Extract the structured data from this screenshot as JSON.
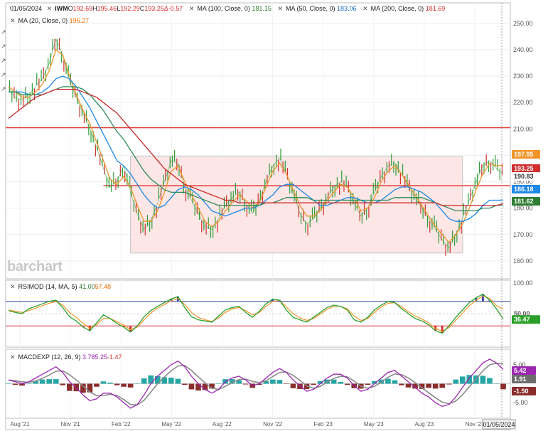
{
  "header": {
    "date": "01/05/2024",
    "symbol": "IWM",
    "open_label": "O",
    "open": "192.69",
    "high_label": "H",
    "high": "195.46",
    "low_label": "L",
    "low": "192.29",
    "close_label": "C",
    "close": "193.25",
    "change_label": "Δ",
    "change": "-0.57",
    "ma100_label": "MA (100, Close, 0)",
    "ma100_value": "181.15",
    "ma50_label": "MA (50, Close, 0)",
    "ma50_value": "183.06",
    "ma200_label": "MA (200, Close, 0)",
    "ma200_value": "181.69",
    "ma20_label": "MA (20, Close, 0)",
    "ma20_value": "196.27"
  },
  "rsi_header": {
    "label": "RSIMOD (14, MA, 5)",
    "v1": "41.00",
    "v2": "57.48"
  },
  "macd_header": {
    "label": "MACDEXP (12, 26, 9)",
    "v1": "3.78",
    "v2": "5.25",
    "v3": "-1.47"
  },
  "watermark": "barchart",
  "colors": {
    "price": "#2e9e3a",
    "ma20": "#f0952a",
    "ma50": "#1e88e5",
    "ma100": "#2e8b57",
    "ma200": "#c62828",
    "hline": "#e53935",
    "range_fill": "#fde4e4",
    "rsi_line": "#2aa02a",
    "rsi_ma": "#f0952a",
    "rsi_high": "#3949ab",
    "rsi_low": "#d32f2f",
    "macd": "#9c27b0",
    "macd_signal": "#8a8a8a",
    "hist_pos": "#26a6a6",
    "hist_neg": "#8b2d2d"
  },
  "chart_data": [
    {
      "type": "line",
      "title": "IWM",
      "x_labels": [
        "Aug '21",
        "Nov '21",
        "Feb '22",
        "May '22",
        "Aug '22",
        "Nov '22",
        "Feb '23",
        "May '23",
        "Aug '23",
        "Nov '23"
      ],
      "current_date": "01/05/2024",
      "y_ticks": [
        160.0,
        170.0,
        180.0,
        190.0,
        200.0,
        210.0,
        220.0,
        230.0,
        240.0,
        250.0
      ],
      "ylim": [
        157,
        254
      ],
      "series": [
        {
          "name": "IWM",
          "values": [
            225,
            222,
            221,
            223,
            226,
            229,
            235,
            244,
            238,
            228,
            222,
            216,
            210,
            203,
            195,
            188,
            190,
            196,
            186,
            178,
            172,
            175,
            182,
            190,
            198,
            197,
            188,
            183,
            178,
            173,
            172,
            176,
            181,
            184,
            186,
            182,
            178,
            183,
            190,
            196,
            199,
            193,
            186,
            178,
            174,
            176,
            180,
            184,
            188,
            190,
            188,
            182,
            177,
            180,
            186,
            192,
            196,
            197,
            193,
            188,
            184,
            180,
            176,
            172,
            168,
            165,
            170,
            176,
            183,
            190,
            196,
            198,
            195,
            193
          ]
        },
        {
          "name": "MA (20, Close, 0)",
          "values": [
            226,
            224,
            222,
            222,
            224,
            227,
            232,
            240,
            238,
            230,
            223,
            217,
            212,
            205,
            198,
            191,
            189,
            192,
            188,
            181,
            175,
            175,
            179,
            186,
            194,
            196,
            190,
            185,
            180,
            175,
            173,
            175,
            179,
            182,
            185,
            183,
            180,
            182,
            188,
            194,
            197,
            193,
            187,
            181,
            177,
            177,
            179,
            183,
            186,
            189,
            188,
            184,
            179,
            180,
            184,
            190,
            194,
            196,
            193,
            189,
            185,
            181,
            177,
            173,
            170,
            167,
            170,
            174,
            180,
            187,
            193,
            197,
            196,
            196.27
          ]
        },
        {
          "name": "MA (50, Close, 0)",
          "values": [
            224,
            224,
            224,
            223,
            223,
            224,
            226,
            229,
            230,
            229,
            226,
            222,
            218,
            213,
            208,
            203,
            198,
            196,
            193,
            189,
            185,
            182,
            180,
            181,
            184,
            187,
            188,
            187,
            185,
            182,
            179,
            178,
            177,
            178,
            179,
            180,
            180,
            181,
            183,
            185,
            188,
            189,
            189,
            187,
            185,
            183,
            181,
            181,
            182,
            183,
            184,
            184,
            183,
            182,
            182,
            183,
            185,
            187,
            188,
            188,
            187,
            186,
            184,
            182,
            179,
            176,
            175,
            175,
            176,
            178,
            181,
            183,
            183,
            183.06
          ]
        },
        {
          "name": "MA (100, Close, 0)",
          "values": [
            224,
            224,
            223,
            223,
            223,
            223,
            224,
            225,
            226,
            226,
            226,
            225,
            223,
            220,
            217,
            213,
            209,
            206,
            202,
            198,
            194,
            191,
            189,
            187,
            186,
            186,
            186,
            185,
            184,
            183,
            182,
            181,
            181,
            181,
            181,
            181,
            181,
            181,
            182,
            182,
            183,
            184,
            184,
            184,
            184,
            183,
            183,
            183,
            183,
            183,
            183,
            183,
            183,
            183,
            183,
            183,
            183,
            184,
            184,
            184,
            184,
            184,
            183,
            182,
            181,
            180,
            179,
            179,
            179,
            179,
            180,
            180,
            181,
            181.15
          ]
        },
        {
          "name": "MA (200, Close, 0)",
          "values": [
            214,
            216,
            218,
            220,
            222,
            223,
            224,
            225,
            225,
            225,
            225,
            224,
            223,
            222,
            220,
            218,
            216,
            213,
            210,
            207,
            204,
            201,
            198,
            195,
            193,
            191,
            189,
            188,
            187,
            186,
            185,
            184,
            183,
            183,
            182,
            182,
            182,
            182,
            182,
            182,
            182,
            182,
            182,
            182,
            182,
            182,
            182,
            182,
            182,
            182,
            182,
            182,
            182,
            182,
            182,
            182,
            182,
            182,
            182,
            182,
            182,
            182,
            182,
            182,
            181,
            181,
            181,
            181,
            181,
            181,
            181,
            181,
            181,
            181.69
          ]
        }
      ],
      "horizontal_lines": [
        210.5,
        188.5
      ],
      "range_box": {
        "y_top": 199.5,
        "y_bottom": 163
      },
      "last_value_tags": [
        "197.95",
        "193.25",
        "190.83",
        "186.18",
        "181.62"
      ]
    },
    {
      "type": "line",
      "title": "RSIMOD (14, MA, 5)",
      "y_ticks": [
        100.0,
        50.0
      ],
      "ylim": [
        0,
        100
      ],
      "levels": [
        70,
        30
      ],
      "series": [
        {
          "name": "RSI",
          "values": [
            55,
            52,
            50,
            58,
            62,
            66,
            70,
            72,
            60,
            45,
            38,
            28,
            22,
            35,
            48,
            42,
            34,
            28,
            20,
            30,
            45,
            55,
            62,
            68,
            74,
            78,
            60,
            45,
            40,
            38,
            36,
            46,
            56,
            60,
            62,
            52,
            44,
            54,
            66,
            74,
            72,
            56,
            44,
            40,
            36,
            44,
            52,
            60,
            64,
            62,
            56,
            40,
            36,
            44,
            56,
            64,
            70,
            68,
            58,
            50,
            42,
            38,
            32,
            22,
            18,
            30,
            44,
            56,
            68,
            76,
            82,
            72,
            58,
            41.0
          ]
        },
        {
          "name": "MA",
          "values": [
            56,
            54,
            52,
            55,
            59,
            63,
            67,
            70,
            64,
            52,
            44,
            34,
            26,
            32,
            42,
            42,
            37,
            31,
            24,
            28,
            40,
            51,
            59,
            65,
            71,
            75,
            65,
            52,
            44,
            40,
            37,
            43,
            52,
            58,
            60,
            55,
            48,
            52,
            62,
            70,
            72,
            61,
            50,
            43,
            39,
            42,
            49,
            57,
            62,
            62,
            58,
            46,
            39,
            42,
            52,
            61,
            67,
            68,
            61,
            53,
            46,
            41,
            35,
            26,
            21,
            27,
            39,
            51,
            63,
            72,
            79,
            75,
            63,
            57.48
          ]
        }
      ],
      "last_value_tags": [
        "50.00",
        "36.47"
      ]
    },
    {
      "type": "line",
      "title": "MACDEXP (12, 26, 9)",
      "y_ticks": [
        5.0,
        -5.0
      ],
      "ylim": [
        -8,
        8
      ],
      "series": [
        {
          "name": "MACD",
          "values": [
            1,
            0.5,
            0,
            0.5,
            1.5,
            2.5,
            3.5,
            4.5,
            3,
            0.5,
            -1,
            -3,
            -4.5,
            -4,
            -2.5,
            -2.5,
            -3.5,
            -5,
            -6.5,
            -5.5,
            -3,
            0,
            2,
            3.5,
            5,
            6,
            4.5,
            2,
            0,
            -1.5,
            -2.5,
            -1.5,
            0.5,
            1.5,
            2,
            1,
            -0.5,
            0,
            1.5,
            3,
            4,
            3,
            1,
            -0.5,
            -2,
            -1.5,
            0,
            1.5,
            2.5,
            2.5,
            1.5,
            -0.5,
            -2,
            -1.5,
            0,
            1.5,
            3,
            3.5,
            2,
            0.5,
            -1,
            -2.5,
            -3.5,
            -5,
            -6,
            -5.5,
            -3.5,
            -1,
            1.5,
            3.5,
            5.5,
            6.5,
            5.5,
            3.78
          ]
        },
        {
          "name": "Signal",
          "values": [
            1,
            0.8,
            0.5,
            0.4,
            0.7,
            1.4,
            2.3,
            3.3,
            3.4,
            2.4,
            1,
            -0.6,
            -2.2,
            -3.2,
            -3.1,
            -2.8,
            -3.1,
            -4.2,
            -5.5,
            -5.6,
            -4.4,
            -2.2,
            0,
            1.8,
            3.4,
            4.7,
            4.8,
            3.5,
            1.8,
            0.2,
            -1.2,
            -1.5,
            -0.7,
            0.3,
            1.1,
            1.2,
            0.6,
            0.3,
            0.8,
            1.9,
            3,
            3.1,
            2.2,
            0.9,
            -0.6,
            -1.2,
            -0.7,
            0.4,
            1.4,
            2,
            1.8,
            0.7,
            -0.7,
            -1.2,
            -0.7,
            0.4,
            1.7,
            2.6,
            2.4,
            1.5,
            0.3,
            -1.1,
            -2.4,
            -3.7,
            -4.9,
            -5.3,
            -4.6,
            -2.9,
            -0.8,
            1.3,
            3.4,
            5,
            5.4,
            5.25
          ]
        }
      ],
      "histogram": [
        0,
        -0.3,
        -0.5,
        0.1,
        0.8,
        1.1,
        1.2,
        1.2,
        -0.4,
        -1.9,
        -2,
        -2.4,
        -2.3,
        -0.8,
        0.6,
        0.3,
        -0.4,
        -0.8,
        -1,
        0.1,
        1.4,
        2.2,
        2,
        1.7,
        1.6,
        1.3,
        -0.3,
        -1.5,
        -1.8,
        -1.7,
        -1.3,
        0,
        1.2,
        1.2,
        0.9,
        -0.2,
        -1.1,
        -0.3,
        0.7,
        1.1,
        1,
        -0.1,
        -1.2,
        -1.4,
        -1.4,
        -0.3,
        0.7,
        1.1,
        1.1,
        0.5,
        -0.3,
        -1.2,
        -1.3,
        -0.3,
        0.7,
        1.1,
        1.3,
        0.9,
        -0.4,
        -1,
        -1.3,
        -1.4,
        -1.1,
        -1.3,
        -1.1,
        -0.2,
        1.1,
        1.9,
        2.3,
        2.2,
        2.1,
        1.5,
        0.1,
        -1.47
      ],
      "last_value_tags": [
        "5.42",
        "1.91",
        "-1.50"
      ]
    }
  ]
}
